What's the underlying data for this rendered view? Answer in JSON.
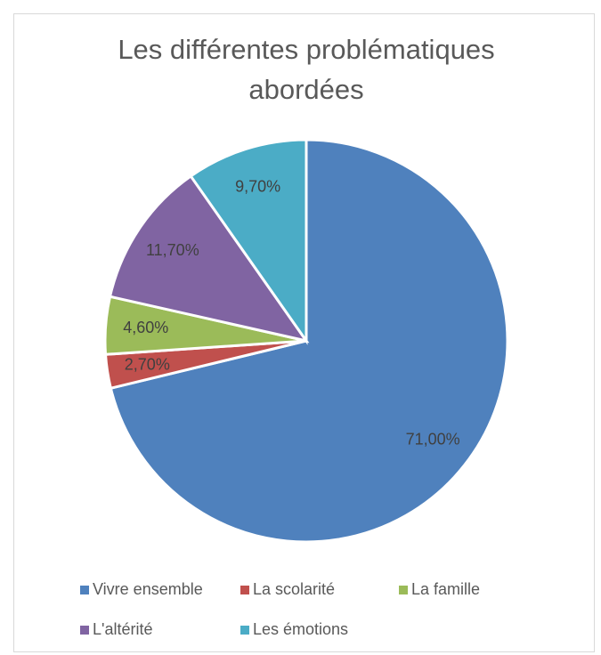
{
  "chart_data": {
    "type": "pie",
    "title": [
      "Les différentes problématiques",
      "abordées"
    ],
    "categories": [
      "Vivre ensemble",
      "La scolarité",
      "La famille",
      "L'altérité",
      "Les émotions"
    ],
    "values": [
      71,
      2.7,
      4.6,
      11.7,
      9.7
    ],
    "value_labels": [
      "71,00%",
      "2,70%",
      "4,60%",
      "11,70%",
      "9,70%"
    ],
    "colors": [
      "#4f81bd",
      "#c0504d",
      "#9bbb59",
      "#8064a2",
      "#4bacc6"
    ],
    "legend": "bottom"
  }
}
